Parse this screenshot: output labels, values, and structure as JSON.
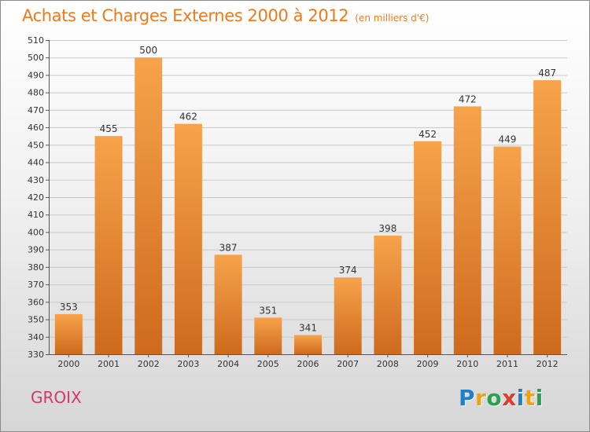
{
  "chart_data": {
    "type": "bar",
    "title": "Achats et Charges Externes 2000 à 2012",
    "subtitle": "(en milliers d'€)",
    "xlabel": "",
    "ylabel": "",
    "categories": [
      "2000",
      "2001",
      "2002",
      "2003",
      "2004",
      "2005",
      "2006",
      "2007",
      "2008",
      "2009",
      "2010",
      "2011",
      "2012"
    ],
    "values": [
      353,
      455,
      500,
      462,
      387,
      351,
      341,
      374,
      398,
      452,
      472,
      449,
      487
    ],
    "ylim": [
      330,
      510
    ],
    "ytick_step": 10,
    "grid": "horizontal",
    "legend": "none",
    "colors": {
      "bar_light": "#f7a34b",
      "bar_dark": "#ce6a1d",
      "title": "#ee7a1c",
      "grid": "#c8c8c8"
    }
  },
  "footer": {
    "commune": "GROIX",
    "logo_letters": [
      "P",
      "r",
      "o",
      "x",
      "i",
      "t",
      "i"
    ],
    "logo_colors": [
      "#1f7fcf",
      "#f0a018",
      "#2aa24a",
      "#e23a2e",
      "#1f7fcf",
      "#f0a018",
      "#2aa24a"
    ]
  }
}
